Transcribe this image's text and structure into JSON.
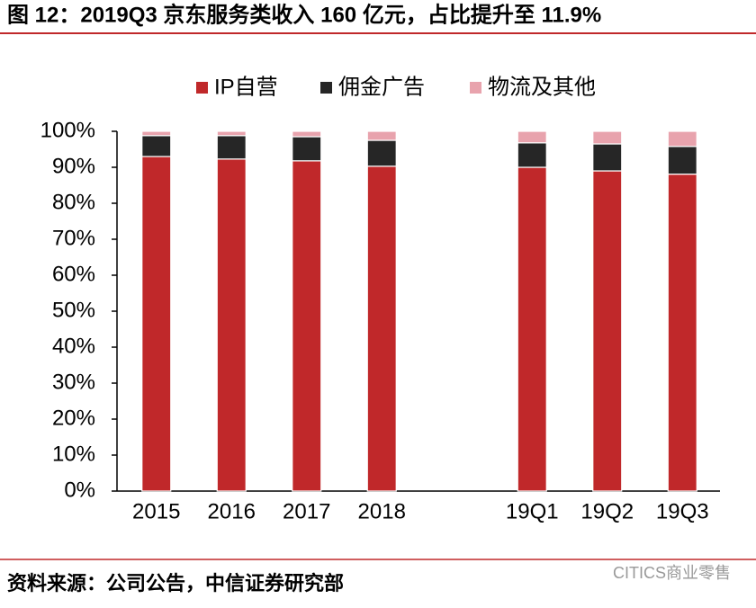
{
  "title": "图 12：2019Q3 京东服务类收入 160 亿元，占比提升至 11.9%",
  "chart_data": {
    "type": "stacked-bar",
    "categories": [
      "2015",
      "2016",
      "2017",
      "2018",
      null,
      "19Q1",
      "19Q2",
      "19Q3"
    ],
    "series": [
      {
        "name": "IP自营",
        "color": "#c0282a",
        "values": [
          93,
          92.3,
          91.8,
          90.3,
          null,
          90,
          89,
          88.1
        ]
      },
      {
        "name": "佣金广告",
        "color": "#262626",
        "values": [
          5.8,
          6.5,
          6.7,
          7.2,
          null,
          6.8,
          7.5,
          7.7
        ]
      },
      {
        "name": "物流及其他",
        "color": "#e8a3ad",
        "values": [
          1.2,
          1.2,
          1.5,
          2.5,
          null,
          3.2,
          3.5,
          4.2
        ]
      }
    ],
    "ylim": [
      0,
      100
    ],
    "yticks": [
      {
        "value": 0,
        "label": "0%"
      },
      {
        "value": 10,
        "label": "10%"
      },
      {
        "value": 20,
        "label": "20%"
      },
      {
        "value": 30,
        "label": "30%"
      },
      {
        "value": 40,
        "label": "40%"
      },
      {
        "value": 50,
        "label": "50%"
      },
      {
        "value": 60,
        "label": "60%"
      },
      {
        "value": 70,
        "label": "70%"
      },
      {
        "value": 80,
        "label": "80%"
      },
      {
        "value": 90,
        "label": "90%"
      },
      {
        "value": 100,
        "label": "100%"
      }
    ],
    "legend": "top"
  },
  "footer": {
    "source": "资料来源：公司公告，中信证券研究部",
    "watermark": "CITICS商业零售"
  }
}
